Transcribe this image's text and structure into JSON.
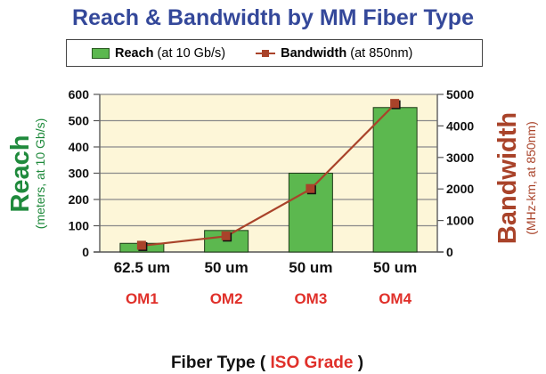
{
  "title": "Reach & Bandwidth by MM Fiber Type",
  "legend": {
    "reach_bold": "Reach",
    "reach_rest": " (at 10 Gb/s)",
    "bw_bold": "Bandwidth",
    "bw_rest": " (at 850nm)"
  },
  "left_axis": {
    "title": "Reach",
    "subtitle": "(meters, at 10 Gb/s)"
  },
  "right_axis": {
    "title": "Bandwidth",
    "subtitle": "(MHz-km, at 850nm)"
  },
  "x_axis": {
    "title_part1": "Fiber Type ( ",
    "title_iso": "ISO Grade",
    "title_part2": " )"
  },
  "colors": {
    "title": "#34489a",
    "bar": "#5cb84f",
    "line": "#a9432a",
    "plot_bg": "#fdf6d8",
    "left_axis_title": "#1f8a3c",
    "right_axis_title": "#a9432a",
    "grade": "#e0302a"
  },
  "chart_data": {
    "type": "bar+line",
    "title": "Reach & Bandwidth by MM Fiber Type",
    "categories": [
      "62.5 um",
      "50 um",
      "50 um",
      "50 um"
    ],
    "grades": [
      "OM1",
      "OM2",
      "OM3",
      "OM4"
    ],
    "xlabel": "Fiber Type ( ISO Grade )",
    "series": [
      {
        "name": "Reach (at 10 Gb/s)",
        "type": "bar",
        "axis": "left",
        "values": [
          33,
          82,
          300,
          550
        ]
      },
      {
        "name": "Bandwidth (at 850nm)",
        "type": "line",
        "axis": "right",
        "values": [
          200,
          500,
          2000,
          4700
        ]
      }
    ],
    "ylabel_left": "Reach (meters, at 10 Gb/s)",
    "ylim_left": [
      0,
      600
    ],
    "yticks_left": [
      0,
      100,
      200,
      300,
      400,
      500,
      600
    ],
    "ylabel_right": "Bandwidth (MHz-km, at 850nm)",
    "ylim_right": [
      0,
      5000
    ],
    "yticks_right": [
      0,
      1000,
      2000,
      3000,
      4000,
      5000
    ],
    "grid": true,
    "legend_position": "top"
  }
}
